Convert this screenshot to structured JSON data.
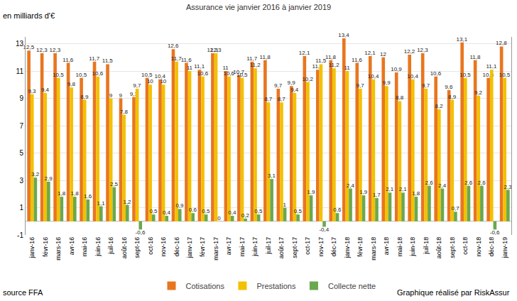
{
  "chart_data": {
    "type": "bar",
    "title": "Assurance vie janvier 2016 à janvier 2019",
    "ylabel": "en milliards d'€",
    "annotations": [
      "source FFA",
      "Graphique réalisé par RiskAssur"
    ],
    "categories": [
      "janv-16",
      "févr-16",
      "mars-16",
      "avr-16",
      "mai-16",
      "juin-16",
      "juil-16",
      "août-16",
      "sept-16",
      "oct-16",
      "nov-16",
      "déc-16",
      "janv-17",
      "févr-17",
      "mars-17",
      "avr-17",
      "mai-17",
      "juin-17",
      "juil-17",
      "août-17",
      "sept-17",
      "oct-17",
      "nov-17",
      "déc-17",
      "janv-18",
      "févr-18",
      "mars-18",
      "avr-18",
      "mai-18",
      "juin-18",
      "juil-18",
      "août-18",
      "sept-18",
      "oct-18",
      "nov-18",
      "déc-18",
      "janv-19"
    ],
    "series": [
      {
        "name": "Cotisations",
        "color": "#e8761f",
        "values": [
          12.5,
          12.3,
          12.3,
          11.6,
          10.5,
          11.7,
          11.5,
          9,
          9.1,
          10.5,
          10.4,
          12.6,
          11.6,
          11.1,
          12.3,
          11,
          10.7,
          11.7,
          11.8,
          9.7,
          9.9,
          12.1,
          11.1,
          11.8,
          13.4,
          11.6,
          12.1,
          12,
          10.9,
          12.2,
          12.3,
          10.6,
          9.6,
          13.1,
          11.8,
          10.5,
          12.8
        ],
        "value_labels": [
          "12,5",
          "12,3",
          "12,3",
          "11,6",
          "10,5",
          "11,7",
          "11,5",
          "9",
          "9,1",
          "10,5",
          "10,4",
          "12,6",
          "11,6",
          "11,1",
          "12,3",
          "11",
          "10,7",
          "11,7",
          "11,8",
          "9,7",
          "9,9",
          "12,1",
          "11,1",
          "11,8",
          "13,4",
          "11,6",
          "12,1",
          "12",
          "10,9",
          "12,2",
          "12,3",
          "10,6",
          "9,6",
          "13,1",
          "11,8",
          "10,5",
          "12,8"
        ]
      },
      {
        "name": "Prestations",
        "color": "#f2c100",
        "values": [
          9.3,
          9.4,
          10.5,
          9.8,
          8.9,
          10.6,
          9,
          7.8,
          9.7,
          10,
          10,
          11.7,
          11,
          10.6,
          12.3,
          10.6,
          10.5,
          11.2,
          8.7,
          8.7,
          9.4,
          10.2,
          11.5,
          11.2,
          11,
          9.7,
          10.4,
          9.9,
          8.8,
          10.4,
          9.7,
          8.2,
          8.9,
          10.5,
          9.2,
          11.1,
          10.5
        ],
        "value_labels": [
          "9,3",
          "9,4",
          "10,5",
          "9,8",
          "8,9",
          "10,6",
          "9",
          "7,8",
          "9,7",
          "10",
          "10",
          "11,7",
          "11",
          "10,6",
          "12,3",
          "10,6",
          "10,5",
          "11,2",
          "8,7",
          "8,7",
          "9,4",
          "10,2",
          "11,5",
          "11,2",
          "11",
          "9,7",
          "10,4",
          "9,9",
          "8,8",
          "10,4",
          "9,7",
          "8,2",
          "8,9",
          "10,5",
          "9,2",
          "11,1",
          "10,5"
        ]
      },
      {
        "name": "Collecte nette",
        "color": "#6aa84f",
        "values": [
          3.2,
          2.9,
          1.8,
          1.8,
          1.6,
          1.1,
          2.5,
          1.2,
          -0.6,
          0.5,
          0.4,
          0.9,
          0.6,
          0.5,
          0,
          0.4,
          0.2,
          0.5,
          3.1,
          1,
          0.5,
          1.9,
          -0.4,
          0.6,
          2.4,
          1.9,
          1.7,
          2.1,
          2.1,
          1.8,
          2.6,
          2.4,
          0.7,
          2.6,
          2.6,
          -0.6,
          2.3
        ],
        "value_labels": [
          "3,2",
          "2,9",
          "1,8",
          "1,8",
          "1,6",
          "1,1",
          "2,5",
          "1,2",
          "-0,6",
          "0,5",
          "0,4",
          "0,9",
          "0,6",
          "0,5",
          "0",
          "0,4",
          "0,2",
          "0,5",
          "3,1",
          "1",
          "0,5",
          "1,9",
          "-0,4",
          "0,6",
          "2,4",
          "1,9",
          "1,7",
          "2,1",
          "2,1",
          "1,8",
          "2,6",
          "2,4",
          "0,7",
          "2,6",
          "2,6",
          "-0,6",
          "2,3"
        ]
      }
    ],
    "ylim": [
      -1,
      13.5
    ],
    "yticks": [
      -1,
      1,
      3,
      5,
      7,
      9,
      11,
      13
    ],
    "grid": true,
    "legend": "bottom",
    "data_labels": true
  }
}
